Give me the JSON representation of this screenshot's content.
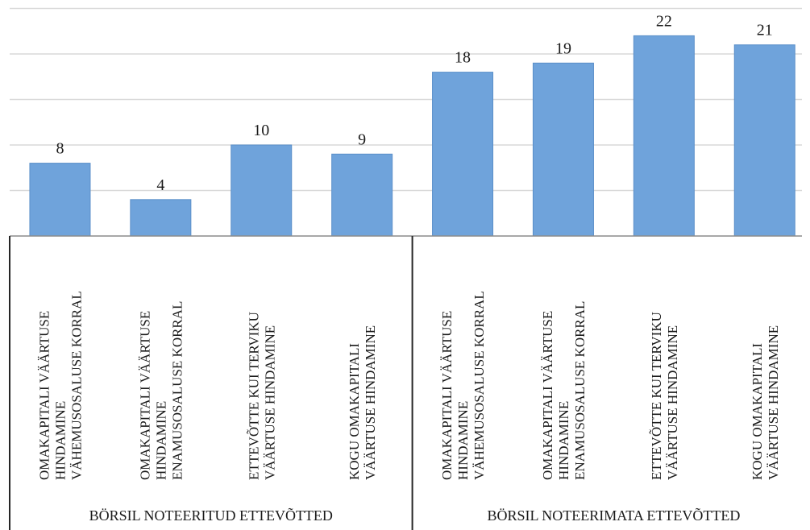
{
  "chart_data": {
    "type": "bar",
    "title": "",
    "xlabel": "",
    "ylabel": "",
    "ylim": [
      0,
      25
    ],
    "grid": true,
    "legend": "none",
    "bar_color": "#6fa3db",
    "bar_edge_color": "#5b8fc9",
    "grid_color": "#d9d9d9",
    "groups": [
      {
        "label": "BÖRSIL NOTEERITUD ETTEVÕTTED",
        "categories": [
          [
            "OMAKAPITALI VÄÄRTUSE",
            "HINDAMINE",
            "VÄHEMUSOSALUSE KORRAL"
          ],
          [
            "OMAKAPITALI VÄÄRTUSE",
            "HINDAMINE",
            "ENAMUSOSALUSE KORRAL"
          ],
          [
            "ETTEVÕTTE KUI TERVIKU",
            "VÄÄRTUSE HINDAMINE"
          ],
          [
            "KOGU OMAKAPITALI",
            "VÄÄRTUSE HINDAMINE"
          ]
        ],
        "values": [
          8,
          4,
          10,
          9
        ]
      },
      {
        "label": "BÖRSIL NOTEERIMATA ETTEVÕTTED",
        "categories": [
          [
            "OMAKAPITALI VÄÄRTUSE",
            "HINDAMINE",
            "VÄHEMUSOSALUSE KORRAL"
          ],
          [
            "OMAKAPITALI VÄÄRTUSE",
            "HINDAMINE",
            "ENAMUSOSALUSE KORRAL"
          ],
          [
            "ETTEVÕTTE KUI TERVIKU",
            "VÄÄRTUSE HINDAMINE"
          ],
          [
            "KOGU OMAKAPITALI",
            "VÄÄRTUSE HINDAMINE"
          ]
        ],
        "values": [
          18,
          19,
          22,
          21
        ]
      }
    ]
  }
}
